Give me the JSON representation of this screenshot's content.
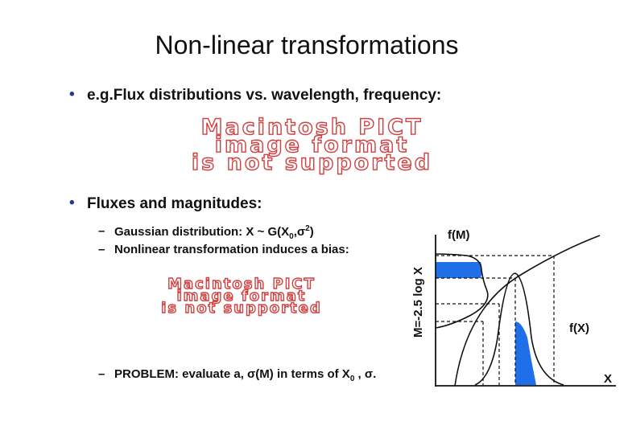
{
  "title": "Non-linear transformations",
  "bullets": [
    {
      "marker": "•",
      "text": "e.g.Flux distributions vs. wavelength, frequency:"
    },
    {
      "marker": "•",
      "text": "Fluxes and magnitudes:"
    }
  ],
  "placeholders": [
    {
      "lines": [
        "Macintosh PICT",
        "image format",
        "is not supported"
      ]
    },
    {
      "lines": [
        "Macintosh PICT",
        "image format",
        "is not supported"
      ]
    }
  ],
  "sub_bullets": [
    {
      "marker": "–",
      "parts": [
        "Gaussian distribution: X ~ G(X",
        "0",
        ",σ",
        "2",
        ")"
      ]
    },
    {
      "marker": "–",
      "parts": [
        "Nonlinear transformation induces a bias:"
      ]
    },
    {
      "marker": "–",
      "parts": [
        "PROBLEM: evaluate a, σ(M) in terms of X",
        "0",
        " , σ."
      ]
    }
  ],
  "diagram": {
    "y_label": "M=-2.5 log X",
    "fm_label": "f(M)",
    "fx_label": "f(X)",
    "x_label": "X"
  }
}
